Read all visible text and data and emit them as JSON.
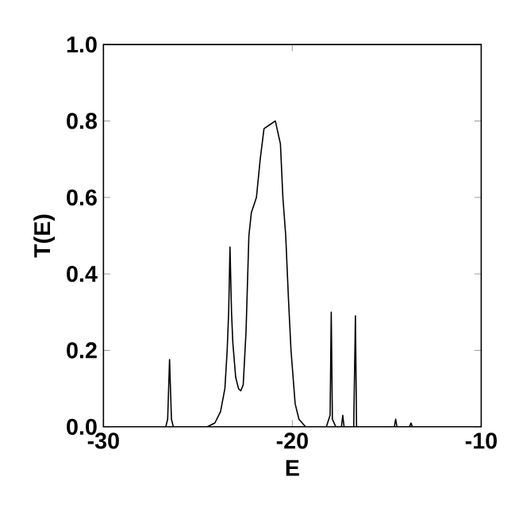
{
  "chart_data": {
    "type": "line",
    "xlabel": "E",
    "ylabel": "T(E)",
    "xlim": [
      -30,
      -10
    ],
    "ylim": [
      0,
      1.0
    ],
    "xticks": [
      -30,
      -20,
      -10
    ],
    "yticks": [
      {
        "value": 0,
        "label": "0.0"
      },
      {
        "value": 0.2,
        "label": "0.2"
      },
      {
        "value": 0.4,
        "label": "0.4"
      },
      {
        "value": 0.6,
        "label": "0.6"
      },
      {
        "value": 0.8,
        "label": "0.8"
      },
      {
        "value": 1.0,
        "label": "1.0"
      }
    ],
    "grid": false,
    "marker": "none",
    "line_style": "solid",
    "series": [
      {
        "color": "#000000",
        "x": [
          -30,
          -26.7,
          -26.6,
          -26.5,
          -26.4,
          -26.3,
          -24.5,
          -24.1,
          -23.8,
          -23.57,
          -23.45,
          -23.37,
          -23.3,
          -23.22,
          -23.15,
          -23.0,
          -22.85,
          -22.73,
          -22.6,
          -22.45,
          -22.3,
          -22.17,
          -21.9,
          -21.7,
          -21.5,
          -21.2,
          -20.9,
          -20.63,
          -20.5,
          -20.35,
          -20.2,
          -20.07,
          -19.85,
          -19.65,
          -19.3,
          -18.2,
          -18.0,
          -17.94,
          -17.88,
          -17.7,
          -17.4,
          -17.33,
          -17.26,
          -16.75,
          -16.66,
          -16.6,
          -14.6,
          -14.53,
          -14.46,
          -13.8,
          -13.72,
          -13.64,
          -10
        ],
        "values": [
          0,
          0,
          0.02,
          0.176,
          0.02,
          0,
          0,
          0.01,
          0.04,
          0.1,
          0.2,
          0.3,
          0.47,
          0.3,
          0.22,
          0.13,
          0.1,
          0.094,
          0.11,
          0.25,
          0.5,
          0.56,
          0.6,
          0.7,
          0.78,
          0.79,
          0.8,
          0.74,
          0.6,
          0.5,
          0.33,
          0.2,
          0.06,
          0.02,
          0,
          0,
          0.03,
          0.3,
          0.02,
          0,
          0,
          0.03,
          0,
          0,
          0.29,
          0,
          0,
          0.02,
          0,
          0,
          0.01,
          0,
          0
        ]
      }
    ]
  }
}
